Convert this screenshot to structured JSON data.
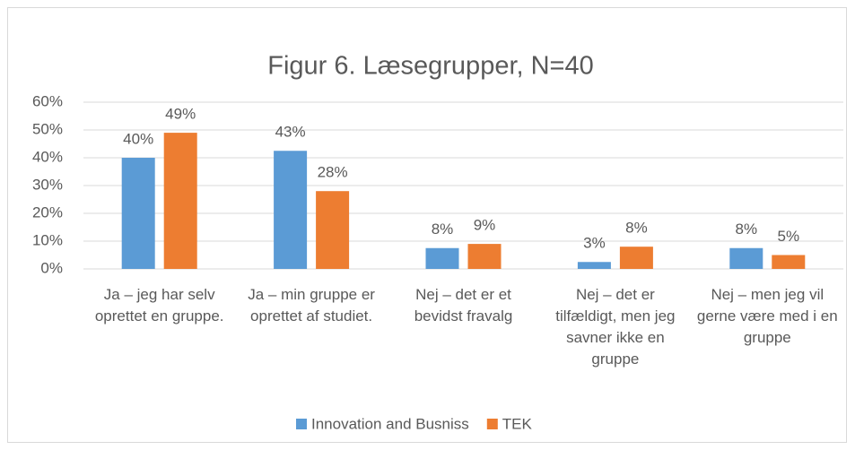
{
  "chart_data": {
    "type": "bar",
    "title": "Figur 6. Læsegrupper, N=40",
    "categories": [
      "Ja – jeg har selv oprettet en gruppe.",
      "Ja – min gruppe er oprettet af studiet.",
      "Nej – det er et bevidst fravalg",
      "Nej – det er tilfældigt, men jeg savner ikke en gruppe",
      "Nej – men jeg vil gerne være med i en gruppe"
    ],
    "series": [
      {
        "name": "Innovation and Busniss",
        "color": "#5b9bd5",
        "values": [
          40,
          42.5,
          7.5,
          2.5,
          7.5
        ],
        "value_labels": [
          "40%",
          "43%",
          "8%",
          "3%",
          "8%"
        ]
      },
      {
        "name": "TEK",
        "color": "#ed7d31",
        "values": [
          49,
          28,
          9,
          8,
          5
        ],
        "value_labels": [
          "49%",
          "28%",
          "9%",
          "8%",
          "5%"
        ]
      }
    ],
    "ylim": [
      0,
      60
    ],
    "yticks": [
      {
        "value": 0,
        "label": "0%"
      },
      {
        "value": 10,
        "label": "10%"
      },
      {
        "value": 20,
        "label": "20%"
      },
      {
        "value": 30,
        "label": "30%"
      },
      {
        "value": 40,
        "label": "40%"
      },
      {
        "value": 50,
        "label": "50%"
      },
      {
        "value": 60,
        "label": "60%"
      }
    ],
    "grid": true,
    "legend": "bottom"
  }
}
